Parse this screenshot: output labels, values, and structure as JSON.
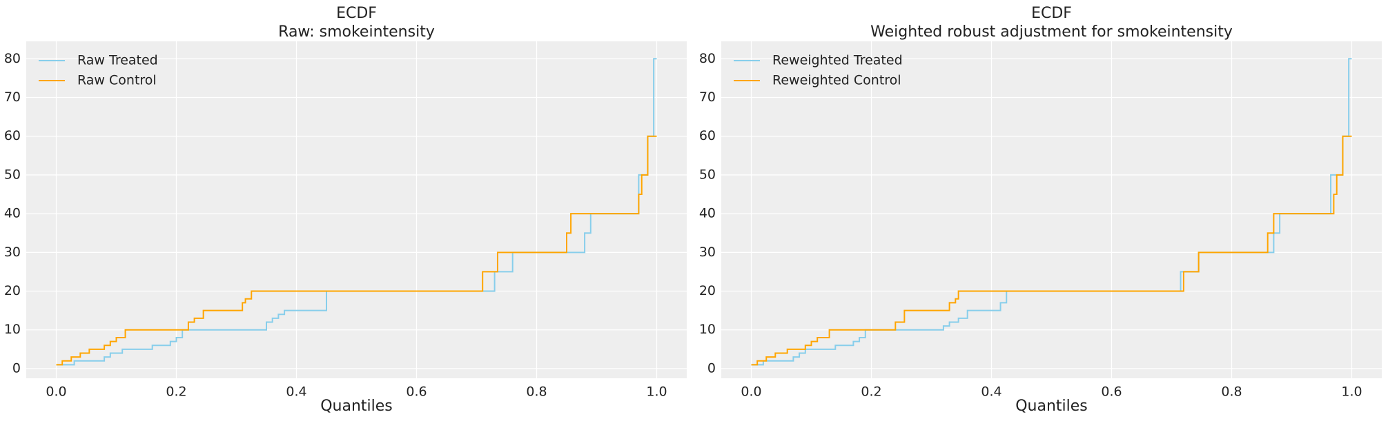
{
  "chart_data": [
    {
      "type": "step",
      "title": "ECDF",
      "subtitle": "Raw: smokeintensity",
      "x_label": "Quantiles",
      "xlim": [
        -0.05,
        1.05
      ],
      "ylim": [
        -2.5,
        84.5
      ],
      "xticks": [
        {
          "value": 0,
          "label": "0.0"
        },
        0.2,
        0.4,
        0.6,
        0.8,
        {
          "value": 1,
          "label": "1.0"
        }
      ],
      "yticks": [
        0,
        10,
        20,
        30,
        40,
        50,
        60,
        70,
        80
      ],
      "grid": true,
      "legend": "upper left",
      "series": [
        {
          "name": "Raw Treated",
          "color": "#87ceeb",
          "x": [
            0,
            0.03,
            0.08,
            0.09,
            0.11,
            0.16,
            0.19,
            0.2,
            0.21,
            0.35,
            0.36,
            0.37,
            0.38,
            0.45,
            0.73,
            0.76,
            0.88,
            0.89,
            0.97,
            0.985,
            0.995,
            1.0
          ],
          "values": [
            1,
            2,
            3,
            4,
            5,
            6,
            7,
            8,
            10,
            12,
            13,
            14,
            15,
            20,
            25,
            30,
            35,
            40,
            50,
            60,
            80,
            80
          ]
        },
        {
          "name": "Raw Control",
          "color": "#ffa500",
          "x": [
            0,
            0.01,
            0.025,
            0.04,
            0.055,
            0.08,
            0.09,
            0.1,
            0.115,
            0.22,
            0.23,
            0.245,
            0.31,
            0.315,
            0.325,
            0.71,
            0.735,
            0.85,
            0.857,
            0.97,
            0.975,
            0.985,
            1.0
          ],
          "values": [
            1,
            2,
            3,
            4,
            5,
            6,
            7,
            8,
            10,
            12,
            13,
            15,
            17,
            18,
            20,
            25,
            30,
            35,
            40,
            45,
            50,
            60,
            60
          ]
        }
      ]
    },
    {
      "type": "step",
      "title": "ECDF",
      "subtitle": "Weighted robust adjustment for smokeintensity",
      "x_label": "Quantiles",
      "xlim": [
        -0.05,
        1.05
      ],
      "ylim": [
        -2.5,
        84.5
      ],
      "xticks": [
        {
          "value": 0,
          "label": "0.0"
        },
        0.2,
        0.4,
        0.6,
        0.8,
        {
          "value": 1,
          "label": "1.0"
        }
      ],
      "yticks": [
        0,
        10,
        20,
        30,
        40,
        50,
        60,
        70,
        80
      ],
      "grid": true,
      "legend": "upper left",
      "series": [
        {
          "name": "Reweighted Treated",
          "color": "#87ceeb",
          "x": [
            0,
            0.02,
            0.07,
            0.08,
            0.09,
            0.14,
            0.17,
            0.18,
            0.19,
            0.32,
            0.33,
            0.345,
            0.36,
            0.415,
            0.425,
            0.715,
            0.745,
            0.87,
            0.88,
            0.965,
            0.985,
            0.995,
            1.0
          ],
          "values": [
            1,
            2,
            3,
            4,
            5,
            6,
            7,
            8,
            10,
            11,
            12,
            13,
            15,
            17,
            20,
            25,
            30,
            35,
            40,
            50,
            60,
            80,
            80
          ]
        },
        {
          "name": "Reweighted Control",
          "color": "#ffa500",
          "x": [
            0,
            0.01,
            0.025,
            0.04,
            0.06,
            0.09,
            0.1,
            0.11,
            0.13,
            0.24,
            0.255,
            0.33,
            0.34,
            0.345,
            0.72,
            0.745,
            0.86,
            0.87,
            0.97,
            0.975,
            0.985,
            1.0
          ],
          "values": [
            1,
            2,
            3,
            4,
            5,
            6,
            7,
            8,
            10,
            12,
            15,
            17,
            18,
            20,
            25,
            30,
            35,
            40,
            45,
            50,
            60,
            60
          ]
        }
      ]
    }
  ]
}
